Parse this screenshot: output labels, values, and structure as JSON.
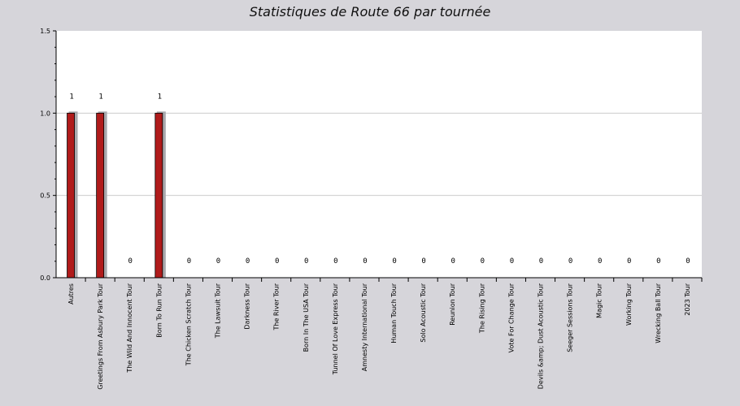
{
  "chart_data": {
    "type": "bar",
    "title": "Statistiques de Route 66 par tournée",
    "xlabel": "",
    "ylabel": "",
    "ylim": [
      0,
      1.5
    ],
    "yticks": [
      "0.0",
      "0.5",
      "1.0",
      "1.5"
    ],
    "grid": true,
    "categories": [
      "Autres",
      "Greetings From Asbury Park Tour",
      "The Wild And Innocent Tour",
      "Born To Run Tour",
      "The Chicken Scratch Tour",
      "The Lawsuit Tour",
      "Darkness Tour",
      "The River Tour",
      "Born In The USA Tour",
      "Tunnel Of Love Express Tour",
      "Amnesty International Tour",
      "Human Touch Tour",
      "Solo Acoustic Tour",
      "Reunion Tour",
      "The Rising Tour",
      "Vote For Change Tour",
      "Devils &amp; Dust Acoustic Tour",
      "Seeger Sessions Tour",
      "Magic Tour",
      "Working Tour",
      "Wrecking Ball Tour",
      "2023 Tour"
    ],
    "values": [
      1,
      1,
      0,
      1,
      0,
      0,
      0,
      0,
      0,
      0,
      0,
      0,
      0,
      0,
      0,
      0,
      0,
      0,
      0,
      0,
      0,
      0
    ],
    "colors": {
      "bar": "#b01b1b",
      "shadow": "#a9a9ad",
      "plot_bg": "#ffffff",
      "page_bg": "#d6d5da",
      "grid": "#cccccc"
    }
  }
}
